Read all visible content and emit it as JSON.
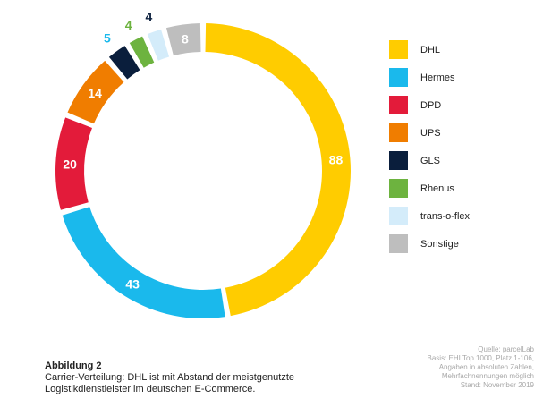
{
  "chart_data": {
    "type": "donut",
    "series": [
      {
        "name": "DHL",
        "value": 88,
        "color": "#FFCC00",
        "label_color": "#ffffff"
      },
      {
        "name": "Hermes",
        "value": 43,
        "color": "#1AB9EC",
        "label_color": "#ffffff"
      },
      {
        "name": "DPD",
        "value": 20,
        "color": "#E31B3A",
        "label_color": "#ffffff"
      },
      {
        "name": "UPS",
        "value": 14,
        "color": "#F07D00",
        "label_color": "#ffffff"
      },
      {
        "name": "GLS",
        "value": 5,
        "color": "#0A1E3C",
        "label_color": "#1AB9EC"
      },
      {
        "name": "Rhenus",
        "value": 4,
        "color": "#6DB33F",
        "label_color": "#6DB33F"
      },
      {
        "name": "trans-o-flex",
        "value": 4,
        "color": "#D4ECFA",
        "label_color": "#0A1E3C"
      },
      {
        "name": "Sonstige",
        "value": 8,
        "color": "#BEBEBE",
        "label_color": "#ffffff"
      }
    ],
    "legend_position": "right"
  },
  "caption": {
    "title": "Abbildung 2",
    "line1": "Carrier-Verteilung: DHL ist mit Abstand der meistgenutzte",
    "line2": "Logistikdienstleister im deutschen E-Commerce."
  },
  "source": {
    "line1": "Quelle: parcelLab",
    "line2": "Basis: EHI Top 1000, Platz 1-106,",
    "line3": "Angaben in absoluten Zahlen,",
    "line4": "Mehrfachnennungen möglich",
    "line5": "Stand: November 2019"
  }
}
